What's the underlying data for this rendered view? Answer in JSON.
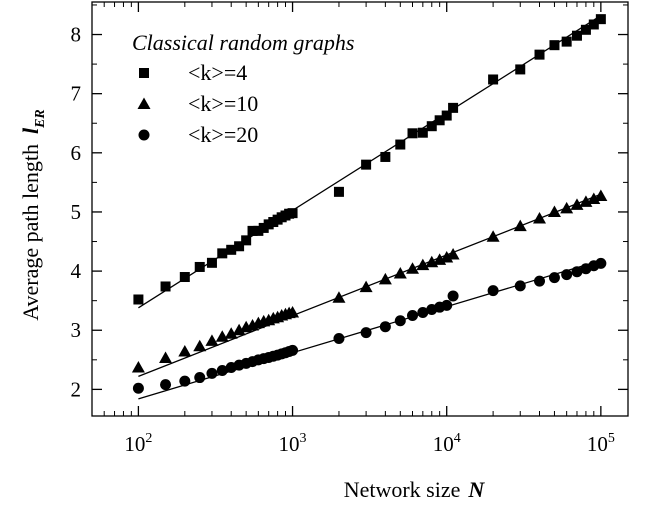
{
  "chart_data": {
    "type": "scatter",
    "xscale": "log",
    "xlim": [
      50,
      150000
    ],
    "ylim": [
      1.55,
      8.55
    ],
    "xlabel": "Network size",
    "xlabel_var": "N",
    "ylabel": "Average path length",
    "ylabel_var": "l",
    "ylabel_sub": "ER",
    "x_ticks": [
      {
        "base": "10",
        "exp": "2",
        "value": 100
      },
      {
        "base": "10",
        "exp": "3",
        "value": 1000
      },
      {
        "base": "10",
        "exp": "4",
        "value": 10000
      },
      {
        "base": "10",
        "exp": "5",
        "value": 100000
      }
    ],
    "y_ticks": [
      "2",
      "3",
      "4",
      "5",
      "6",
      "7",
      "8"
    ],
    "y_tick_values": [
      2,
      3,
      4,
      5,
      6,
      7,
      8
    ],
    "legend_title": "Classical random graphs",
    "legend_position": "top-left",
    "series": [
      {
        "name": "<k>=4",
        "marker": "square",
        "x": [
          100,
          150,
          200,
          250,
          300,
          350,
          400,
          450,
          500,
          550,
          600,
          650,
          700,
          750,
          800,
          850,
          900,
          950,
          1000,
          2000,
          3000,
          4000,
          5000,
          6000,
          7000,
          8000,
          9000,
          10000,
          11000,
          20000,
          30000,
          40000,
          50000,
          60000,
          70000,
          80000,
          90000,
          100000
        ],
        "y": [
          3.52,
          3.74,
          3.9,
          4.07,
          4.14,
          4.3,
          4.36,
          4.42,
          4.52,
          4.68,
          4.68,
          4.73,
          4.79,
          4.83,
          4.87,
          4.91,
          4.94,
          4.97,
          4.98,
          5.34,
          5.8,
          5.93,
          6.14,
          6.33,
          6.34,
          6.45,
          6.55,
          6.63,
          6.76,
          7.24,
          7.41,
          7.66,
          7.82,
          7.88,
          7.98,
          8.08,
          8.17,
          8.26
        ],
        "fit": {
          "x": [
            100,
            100000
          ],
          "y": [
            3.38,
            8.32
          ]
        }
      },
      {
        "name": "<k>=10",
        "marker": "triangle",
        "x": [
          100,
          150,
          200,
          250,
          300,
          350,
          400,
          450,
          500,
          550,
          600,
          650,
          700,
          750,
          800,
          850,
          900,
          950,
          1000,
          2000,
          3000,
          4000,
          5000,
          6000,
          7000,
          8000,
          9000,
          10000,
          11000,
          20000,
          30000,
          40000,
          50000,
          60000,
          70000,
          80000,
          90000,
          100000
        ],
        "y": [
          2.37,
          2.53,
          2.64,
          2.73,
          2.82,
          2.89,
          2.94,
          3.0,
          3.05,
          3.08,
          3.12,
          3.15,
          3.17,
          3.2,
          3.22,
          3.25,
          3.27,
          3.29,
          3.3,
          3.55,
          3.73,
          3.86,
          3.96,
          4.04,
          4.1,
          4.15,
          4.19,
          4.23,
          4.28,
          4.58,
          4.76,
          4.89,
          5.0,
          5.06,
          5.12,
          5.17,
          5.22,
          5.27
        ],
        "fit": {
          "x": [
            100,
            100000
          ],
          "y": [
            2.22,
            5.3
          ]
        }
      },
      {
        "name": "<k>=20",
        "marker": "circle",
        "x": [
          100,
          150,
          200,
          250,
          300,
          350,
          400,
          450,
          500,
          550,
          600,
          650,
          700,
          750,
          800,
          850,
          900,
          950,
          1000,
          2000,
          3000,
          4000,
          5000,
          6000,
          7000,
          8000,
          9000,
          10000,
          11000,
          20000,
          30000,
          40000,
          50000,
          60000,
          70000,
          80000,
          90000,
          100000
        ],
        "y": [
          2.02,
          2.08,
          2.14,
          2.2,
          2.27,
          2.32,
          2.37,
          2.41,
          2.44,
          2.47,
          2.5,
          2.52,
          2.54,
          2.56,
          2.58,
          2.6,
          2.62,
          2.64,
          2.66,
          2.86,
          2.96,
          3.06,
          3.16,
          3.25,
          3.3,
          3.35,
          3.39,
          3.42,
          3.58,
          3.67,
          3.75,
          3.83,
          3.89,
          3.94,
          3.99,
          4.04,
          4.09,
          4.13
        ],
        "fit": {
          "x": [
            100,
            100000
          ],
          "y": [
            1.84,
            4.18
          ]
        }
      }
    ]
  }
}
